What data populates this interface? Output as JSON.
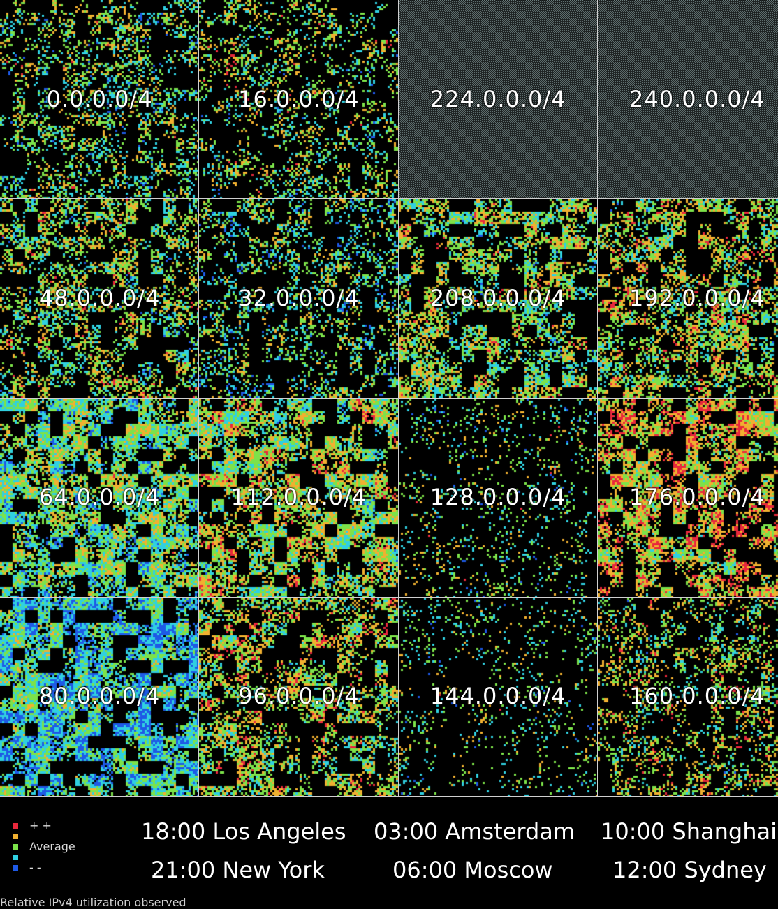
{
  "chart_data": {
    "type": "heatmap",
    "title": "",
    "caption": "Relative IPv4 utilization observed",
    "grid_rows": [
      [
        "0.0.0.0/4",
        "16.0.0.0/4",
        "224.0.0.0/4",
        "240.0.0.0/4"
      ],
      [
        "48.0.0.0/4",
        "32.0.0.0/4",
        "208.0.0.0/4",
        "192.0.0.0/4"
      ],
      [
        "64.0.0.0/4",
        "112.0.0.0/4",
        "128.0.0.0/4",
        "176.0.0.0/4"
      ],
      [
        "80.0.0.0/4",
        "96.0.0.0/4",
        "144.0.0.0/4",
        "160.0.0.0/4"
      ]
    ],
    "reserved_blocks": [
      "224.0.0.0/4",
      "240.0.0.0/4"
    ],
    "legend": {
      "levels": [
        {
          "label": "+ +",
          "color": "#e8283c"
        },
        {
          "label": "",
          "color": "#f0b030"
        },
        {
          "label": "Average",
          "color": "#7ce24a"
        },
        {
          "label": "",
          "color": "#30d0e0"
        },
        {
          "label": "- -",
          "color": "#1e5ae6"
        }
      ]
    },
    "clocks": [
      [
        "18:00 Los Angeles",
        "03:00 Amsterdam",
        "10:00 Shanghai"
      ],
      [
        "21:00 New York",
        "06:00 Moscow",
        "12:00 Sydney"
      ]
    ]
  },
  "colors": {
    "background": "#000000",
    "grid_lines": "#cfcfcf",
    "reserved_hatch": "#9fb8b8"
  }
}
